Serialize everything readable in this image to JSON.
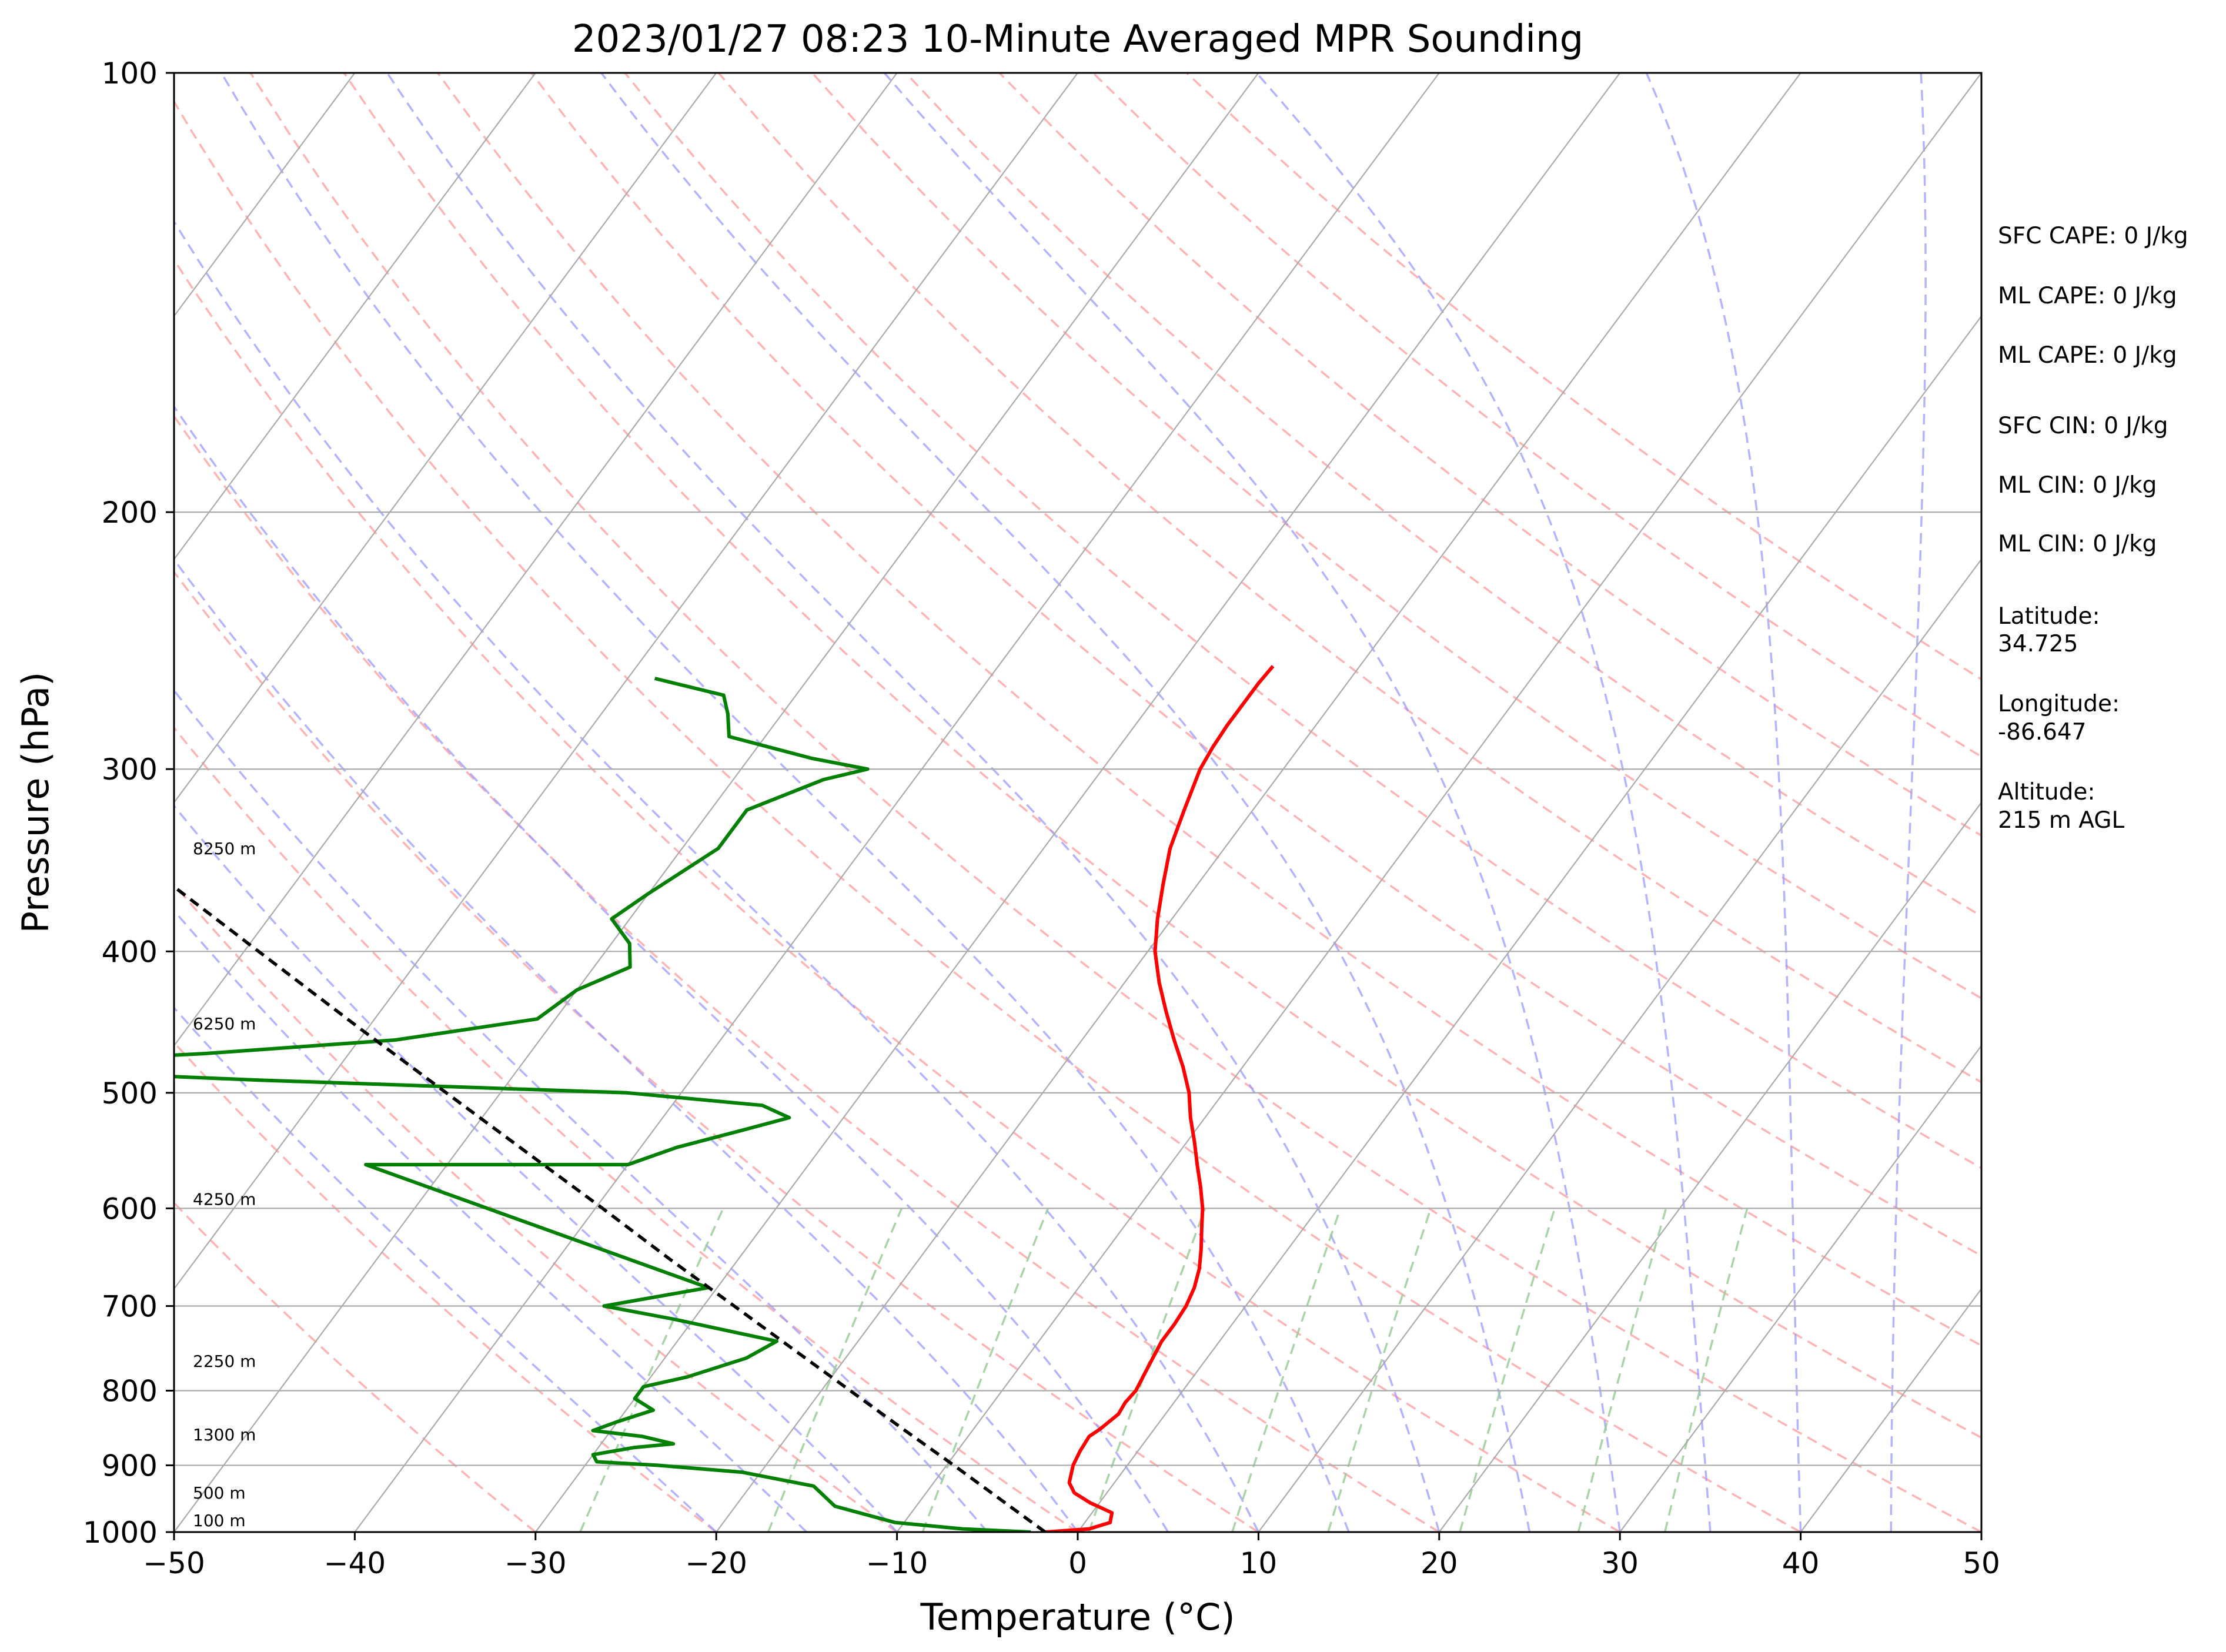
{
  "chart_data": {
    "type": "line",
    "title": "2023/01/27 08:23 10-Minute Averaged MPR Sounding",
    "xlabel": "Temperature (°C)",
    "ylabel": "Pressure (hPa)",
    "xlim": [
      -50,
      50
    ],
    "ylim": [
      1000,
      100
    ],
    "y_scale": "log",
    "x_ticks": [
      "−50",
      "−40",
      "−30",
      "−20",
      "−10",
      "0",
      "10",
      "20",
      "30",
      "40",
      "50"
    ],
    "x_tick_values": [
      -50,
      -40,
      -30,
      -20,
      -10,
      0,
      10,
      20,
      30,
      40,
      50
    ],
    "y_ticks": [
      "100",
      "200",
      "300",
      "400",
      "500",
      "600",
      "700",
      "800",
      "900",
      "1000"
    ],
    "y_tick_values": [
      100,
      200,
      300,
      400,
      500,
      600,
      700,
      800,
      900,
      1000
    ],
    "grid": true,
    "colors": {
      "temperature": "#ff0000",
      "dewpoint": "#008000",
      "parcel": "#000000",
      "isotherm": "#aaaaaa",
      "dry_adiabat": "#ff9999",
      "moist_adiabat": "#9999ff",
      "mixing_ratio": "#99cc99"
    },
    "series": [
      {
        "key": "temperature",
        "pressure": [
          1000,
          995,
          985,
          970,
          955,
          940,
          925,
          910,
          900,
          880,
          860,
          850,
          840,
          830,
          815,
          800,
          780,
          760,
          740,
          720,
          700,
          680,
          660,
          640,
          620,
          600,
          580,
          560,
          540,
          520,
          500,
          480,
          460,
          440,
          420,
          400,
          380,
          360,
          340,
          320,
          300,
          290,
          280,
          270,
          262,
          255
        ],
        "values": [
          -1.8,
          0.5,
          1.4,
          1.1,
          -0.5,
          -1.8,
          -2.5,
          -2.8,
          -3.0,
          -3.2,
          -3.3,
          -3.0,
          -2.8,
          -2.6,
          -2.7,
          -2.6,
          -2.8,
          -3.0,
          -3.2,
          -3.2,
          -3.3,
          -3.6,
          -4.1,
          -4.8,
          -5.6,
          -6.4,
          -7.4,
          -8.5,
          -9.6,
          -10.8,
          -11.9,
          -13.3,
          -14.9,
          -16.5,
          -18.1,
          -19.6,
          -20.8,
          -21.9,
          -23.0,
          -23.8,
          -24.6,
          -24.8,
          -24.9,
          -24.9,
          -24.9,
          -24.8
        ]
      },
      {
        "key": "dewpoint",
        "pressure": [
          1000,
          995,
          985,
          960,
          930,
          910,
          900,
          895,
          885,
          875,
          870,
          860,
          852,
          840,
          825,
          810,
          795,
          783,
          760,
          740,
          715,
          700,
          680,
          680,
          560,
          560,
          545,
          530,
          520,
          510,
          500,
          490,
          480,
          470,
          460,
          445,
          425,
          410,
          395,
          380,
          365,
          340,
          320,
          305,
          300,
          295,
          285,
          275,
          267,
          260
        ],
        "values": [
          -2.6,
          -6.5,
          -10.5,
          -14.5,
          -16.5,
          -21.0,
          -26.0,
          -29.5,
          -30.0,
          -28.0,
          -26.0,
          -28.0,
          -31.0,
          -30.0,
          -28.5,
          -30.0,
          -30.0,
          -28.0,
          -25.5,
          -24.5,
          -31.0,
          -35.5,
          -30.5,
          -30.5,
          -54.5,
          -40.0,
          -38.0,
          -35.0,
          -33.0,
          -35.0,
          -43.0,
          -64.0,
          -82.0,
          -68.0,
          -58.0,
          -51.0,
          -50.0,
          -48.0,
          -49.0,
          -51.0,
          -50.0,
          -48.0,
          -48.0,
          -45.0,
          -43.0,
          -46.5,
          -52.0,
          -53.0,
          -54.0,
          -58.5
        ]
      },
      {
        "key": "parcel",
        "pressure": [
          1000,
          950,
          900,
          850,
          800,
          750,
          700,
          650,
          600,
          550,
          500,
          450,
          400,
          350,
          300
        ],
        "values": [
          -1.8,
          -5.6,
          -9.6,
          -13.9,
          -18.4,
          -23.2,
          -28.3,
          -33.8,
          -39.6,
          -46.0,
          -53.0,
          -60.7,
          -69.2,
          -78.8,
          -89.8
        ]
      }
    ],
    "height_labels": [
      "100 m",
      "500 m",
      "1300 m",
      "2250 m",
      "4250 m",
      "6250 m",
      "8250 m"
    ],
    "height_label_pressures": [
      1000,
      954,
      870,
      775,
      600,
      455,
      345
    ],
    "stats": [
      "SFC CAPE: 0 J/kg",
      "ML CAPE: 0 J/kg",
      "ML CAPE: 0 J/kg",
      "SFC CIN: 0 J/kg",
      "ML CIN: 0 J/kg",
      "ML CIN: 0 J/kg"
    ],
    "location": [
      {
        "label": "Latitude:",
        "value": "34.725"
      },
      {
        "label": "Longitude:",
        "value": "-86.647"
      },
      {
        "label": "Altitude:",
        "value": "215 m AGL"
      }
    ]
  }
}
